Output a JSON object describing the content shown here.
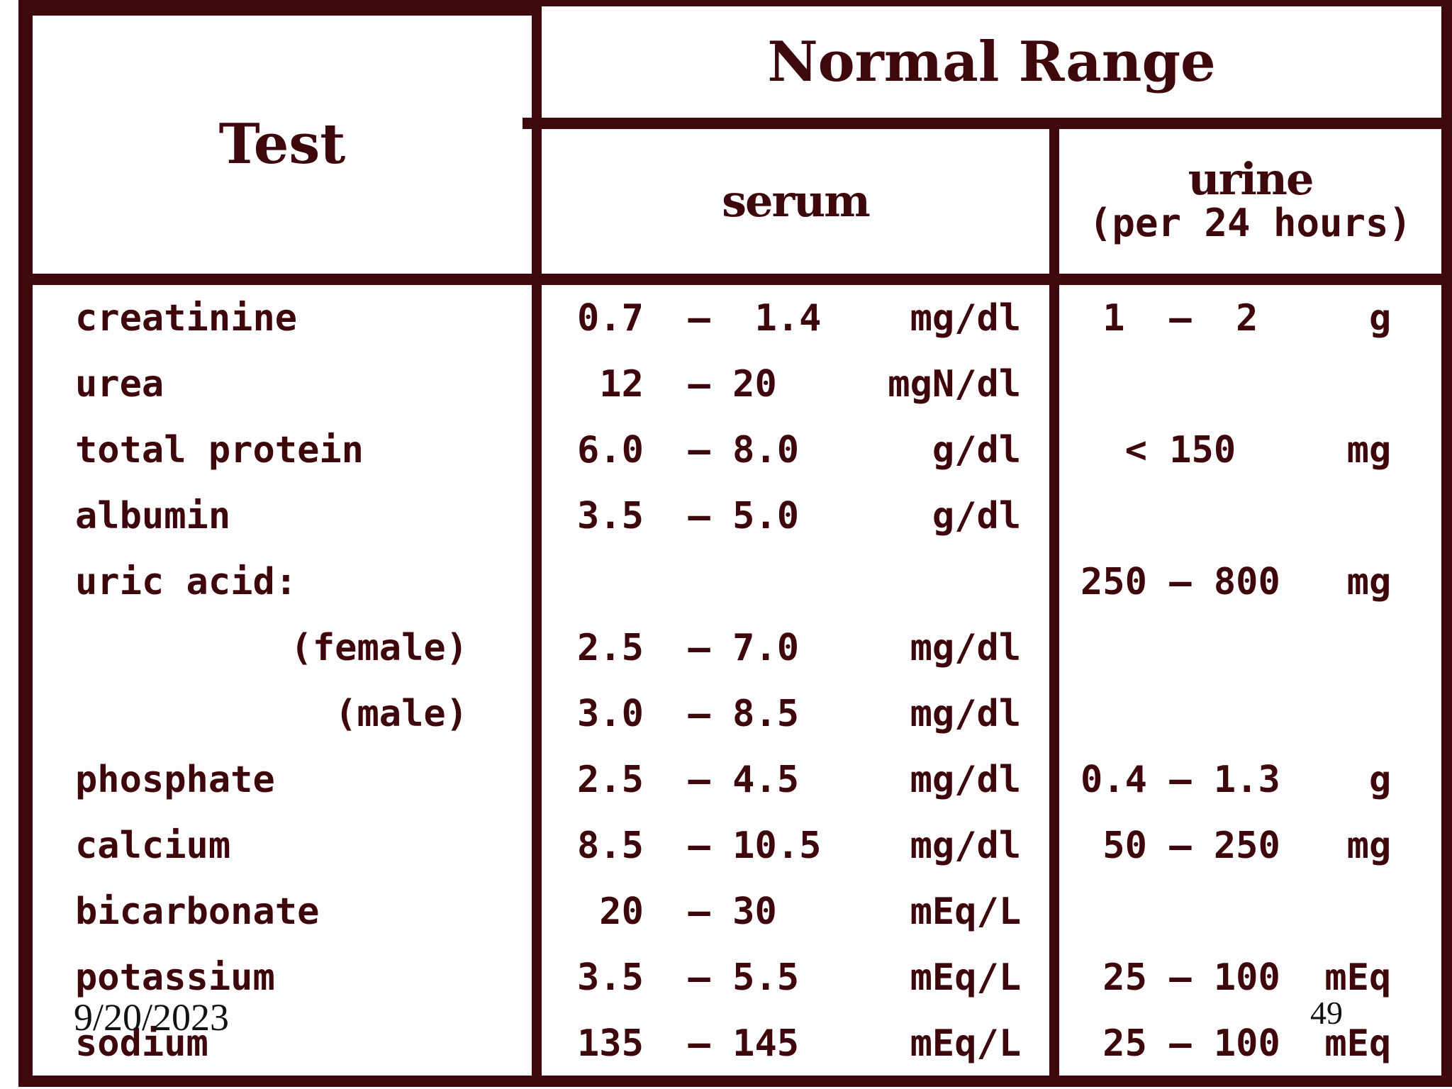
{
  "table": {
    "header": {
      "test_label": "Test",
      "normal_range_label": "Normal Range",
      "serum_label": "serum",
      "urine_label": "urine",
      "urine_sublabel": "(per 24 hours)"
    },
    "rows": [
      {
        "test": "creatinine",
        "serum": "0.7  –  1.4    mg/dl",
        "urine": " 1  –  2     g"
      },
      {
        "test": "urea",
        "serum": " 12  – 20     mgN/dl",
        "urine": ""
      },
      {
        "test": "total protein",
        "serum": "6.0  – 8.0      g/dl",
        "urine": "  < 150     mg"
      },
      {
        "test": "albumin",
        "serum": "3.5  – 5.0      g/dl",
        "urine": ""
      },
      {
        "test": "uric acid:",
        "serum": "",
        "urine": "250 – 800   mg"
      },
      {
        "test": "(female)",
        "serum": "2.5  – 7.0     mg/dl",
        "urine": ""
      },
      {
        "test": "(male)",
        "serum": "3.0  – 8.5     mg/dl",
        "urine": ""
      },
      {
        "test": "phosphate",
        "serum": "2.5  – 4.5     mg/dl",
        "urine": "0.4 – 1.3    g"
      },
      {
        "test": "calcium",
        "serum": "8.5  – 10.5    mg/dl",
        "urine": " 50 – 250   mg"
      },
      {
        "test": "bicarbonate",
        "serum": " 20  – 30      mEq/L",
        "urine": ""
      },
      {
        "test": "potassium",
        "serum": "3.5  – 5.5     mEq/L",
        "urine": " 25 – 100  mEq"
      },
      {
        "test": "sodium",
        "serum": "135  – 145     mEq/L",
        "urine": " 25 – 100  mEq"
      }
    ]
  },
  "footer": {
    "date": "9/20/2023",
    "page_number": "49"
  },
  "colors": {
    "maroon": "#3d070b",
    "footer_text": "#141114",
    "background": "#fefdfd"
  }
}
